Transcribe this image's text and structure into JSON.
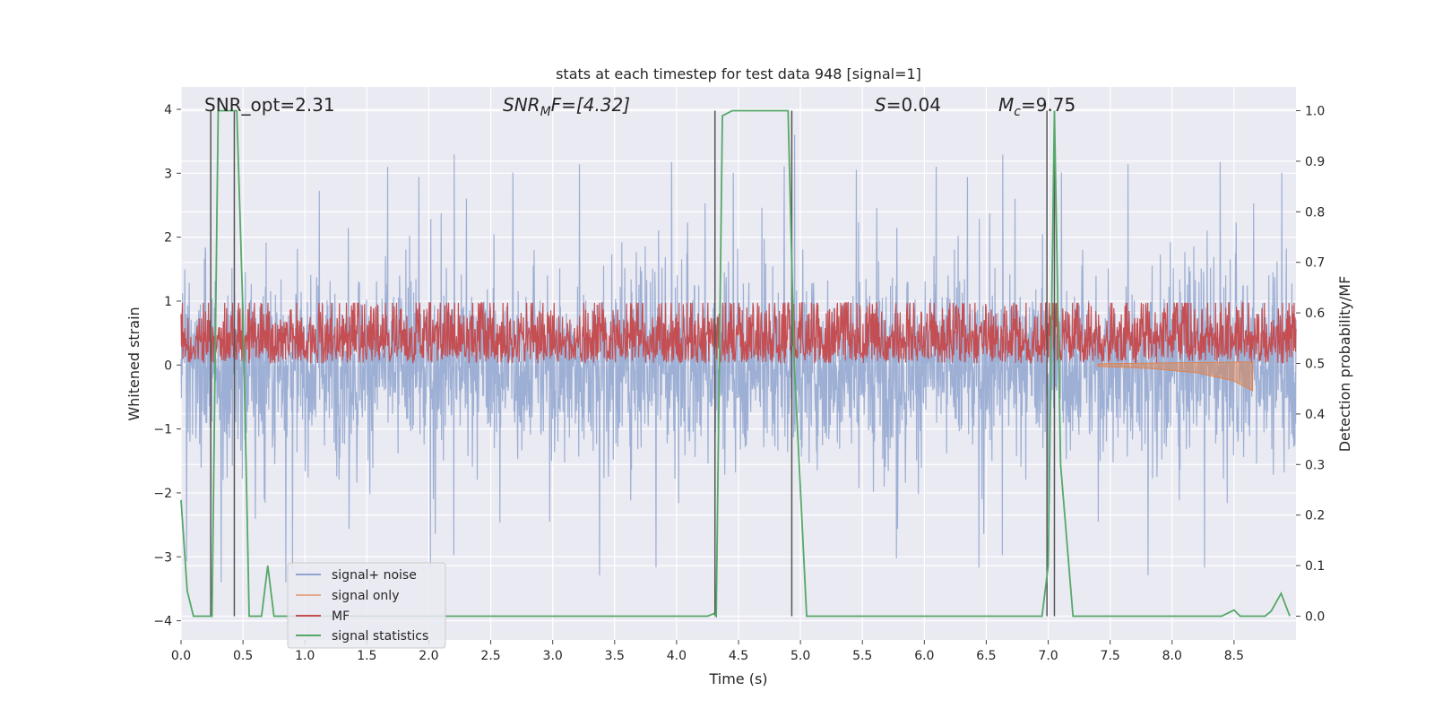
{
  "chart_data": {
    "type": "line",
    "title": "stats at each timestep for test data 948 [signal=1]",
    "xlabel": "Time (s)",
    "ylabel_left": "Whitened strain",
    "ylabel_right": "Detection probability/MF",
    "xlim": [
      0.0,
      9.0
    ],
    "ylim_left": [
      -4.3,
      4.35
    ],
    "ylim_right": [
      -0.047,
      1.047
    ],
    "x_ticks": [
      "0.0",
      "0.5",
      "1.0",
      "1.5",
      "2.0",
      "2.5",
      "3.0",
      "3.5",
      "4.0",
      "4.5",
      "5.0",
      "5.5",
      "6.0",
      "6.5",
      "7.0",
      "7.5",
      "8.0",
      "8.5"
    ],
    "y_ticks_left": [
      "4",
      "3",
      "2",
      "1",
      "0",
      "−1",
      "−2",
      "−3",
      "−4"
    ],
    "y_ticks_right": [
      "1.0",
      "0.9",
      "0.8",
      "0.7",
      "0.6",
      "0.5",
      "0.4",
      "0.3",
      "0.2",
      "0.1",
      "0.0"
    ],
    "grid": true,
    "legend_position": "lower-left",
    "annotations": {
      "snr_opt": "SNR_opt=2.31",
      "snr_mf_prefix": "SNR",
      "snr_mf_sub": "M",
      "snr_mf_rest": "F=[4.32]",
      "s_prefix": "S",
      "s_rest": "=0.04",
      "mc_prefix": "M",
      "mc_sub": "c",
      "mc_rest": "=9.75"
    },
    "series": [
      {
        "name": "signal+ noise",
        "color": "#8fa5cf",
        "description_values": {
          "envelope_upper_approx": 2.6,
          "envelope_lower_approx": -2.2,
          "peak_max": 3.8,
          "peak_min": -3.4
        }
      },
      {
        "name": "signal only",
        "color": "#dd8452",
        "x": [
          7.4,
          7.8,
          8.2,
          8.5,
          8.65
        ],
        "y_lower": [
          -0.02,
          -0.05,
          -0.12,
          -0.25,
          -0.4
        ]
      },
      {
        "name": "MF",
        "color": "#c44e52",
        "baseline": 0.5,
        "amplitude": 0.1
      },
      {
        "name": "signal statistics",
        "color": "#55a868",
        "x": [
          0.0,
          0.05,
          0.1,
          0.25,
          0.3,
          0.45,
          0.5,
          0.55,
          0.6,
          0.65,
          0.7,
          0.75,
          0.8,
          4.25,
          4.3,
          4.32,
          4.37,
          4.45,
          4.9,
          4.95,
          5.05,
          6.95,
          7.0,
          7.05,
          7.1,
          7.2,
          8.4,
          8.5,
          8.55,
          8.75,
          8.8,
          8.88,
          8.95
        ],
        "y": [
          0.23,
          0.05,
          0.0,
          0.0,
          1.0,
          1.0,
          0.6,
          0.0,
          0.0,
          0.0,
          0.1,
          0.0,
          0.0,
          0.0,
          0.005,
          0.0,
          0.99,
          1.0,
          1.0,
          0.5,
          0.0,
          0.0,
          0.1,
          1.0,
          0.3,
          0.0,
          0.0,
          0.012,
          0.0,
          0.0,
          0.01,
          0.045,
          0.0
        ]
      },
      {
        "name": "vertical markers",
        "color": "#555555",
        "x": [
          0.24,
          0.43,
          4.31,
          4.93,
          6.99,
          7.05
        ]
      }
    ]
  }
}
